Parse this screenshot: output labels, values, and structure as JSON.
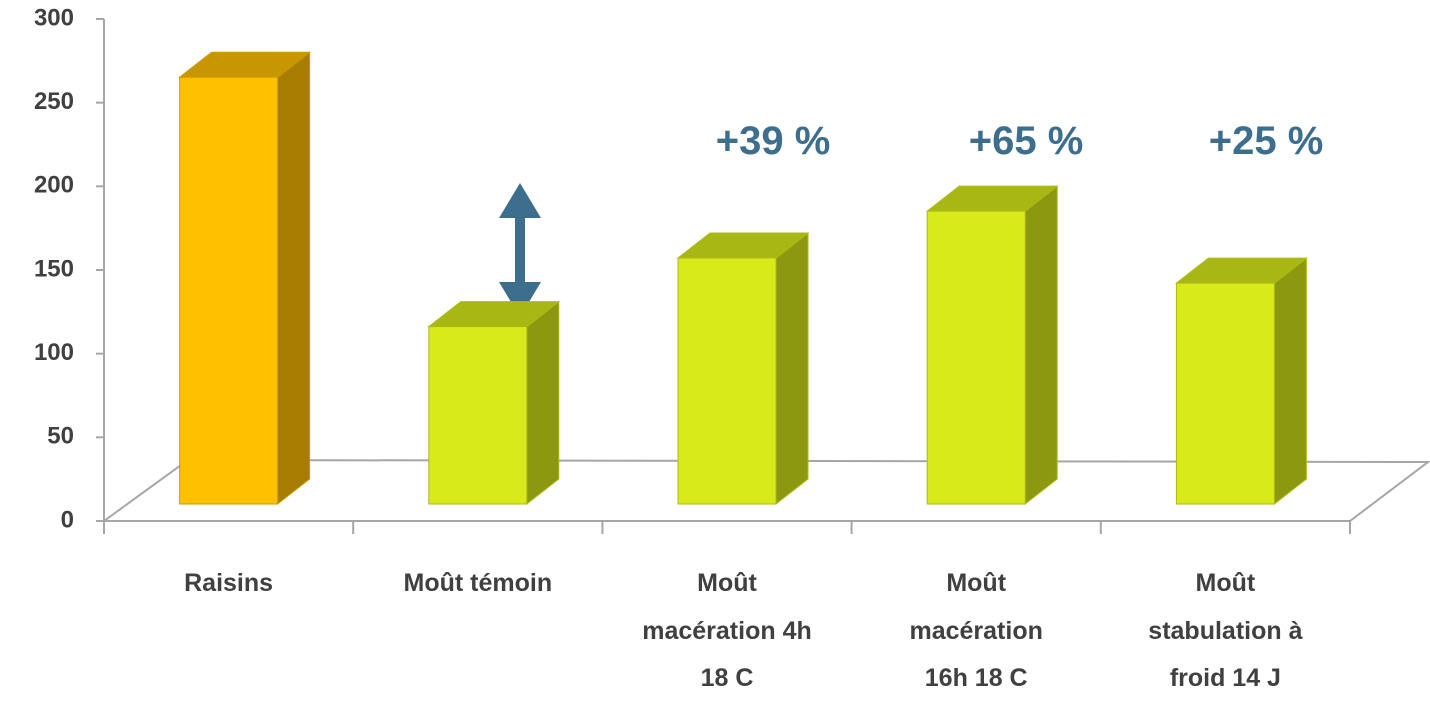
{
  "chart_data": {
    "type": "bar3d",
    "categories": [
      "Raisins",
      "Moût témoin",
      "Moût\nmacération 4h\n18  C",
      "Moût\nmacération\n16h 18  C",
      "Moût\nstabulation à\nfroid 14 J"
    ],
    "values": [
      255,
      106,
      147,
      175,
      132
    ],
    "colors": [
      "#ffc000",
      "#d9ea1a",
      "#d9ea1a",
      "#d9ea1a",
      "#d9ea1a"
    ],
    "ylim": [
      0,
      300
    ],
    "yticks": [
      0,
      50,
      100,
      150,
      200,
      250,
      300
    ],
    "annotations": [
      "+39 %",
      "+65 %",
      "+25 %"
    ]
  }
}
